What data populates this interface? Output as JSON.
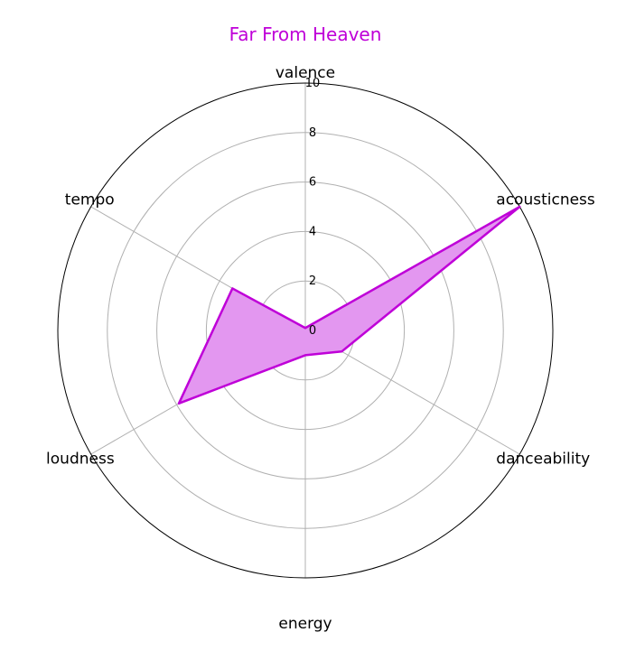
{
  "chart_data": {
    "type": "radar",
    "title": "Far From Heaven",
    "axes": [
      "valence",
      "acousticness",
      "danceability",
      "energy",
      "loudness",
      "tempo"
    ],
    "values": [
      0.1,
      10.0,
      1.7,
      1.0,
      5.9,
      3.4
    ],
    "rlim": [
      0,
      10
    ],
    "rticks": [
      "0",
      "2",
      "4",
      "6",
      "8",
      "10"
    ],
    "grid": true,
    "colors": {
      "series": "#bf00d8",
      "fill": "#e397f0",
      "grid": "#b0b0b0",
      "frame": "#000000",
      "title": "#bf00d8"
    }
  }
}
